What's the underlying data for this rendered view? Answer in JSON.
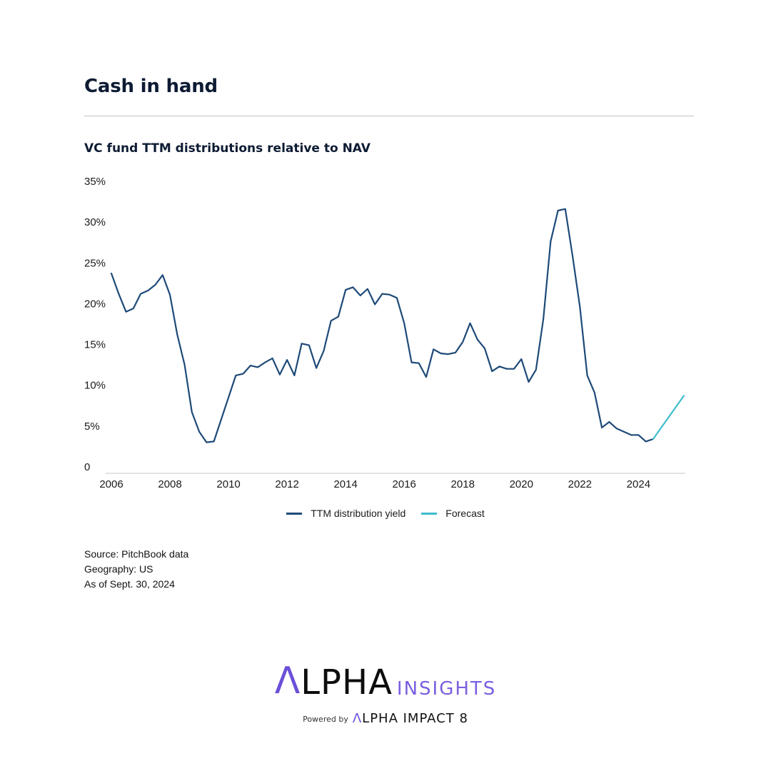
{
  "page": {
    "title": "Cash in hand",
    "subtitle": "VC fund TTM distributions relative to NAV"
  },
  "chart_data": {
    "type": "line",
    "title": "VC fund TTM distributions relative to NAV",
    "xlabel": "",
    "ylabel": "",
    "xlim": [
      2006,
      2025.6
    ],
    "ylim": [
      0,
      35
    ],
    "x_ticks": [
      "2006",
      "2008",
      "2010",
      "2012",
      "2014",
      "2016",
      "2018",
      "2020",
      "2022",
      "2024"
    ],
    "y_ticks": [
      "0",
      "5%",
      "10%",
      "15%",
      "20%",
      "25%",
      "30%",
      "35%"
    ],
    "grid": false,
    "legend_position": "bottom-center",
    "series": [
      {
        "name": "TTM distribution yield",
        "color": "#1e4a78",
        "points": [
          [
            2006.0,
            24.5
          ],
          [
            2006.25,
            22.0
          ],
          [
            2006.5,
            19.8
          ],
          [
            2006.75,
            20.2
          ],
          [
            2007.0,
            22.0
          ],
          [
            2007.25,
            22.4
          ],
          [
            2007.5,
            23.1
          ],
          [
            2007.75,
            24.3
          ],
          [
            2008.0,
            21.9
          ],
          [
            2008.25,
            17.0
          ],
          [
            2008.5,
            13.3
          ],
          [
            2008.75,
            7.5
          ],
          [
            2009.0,
            5.1
          ],
          [
            2009.25,
            3.8
          ],
          [
            2009.5,
            3.9
          ],
          [
            2009.75,
            6.6
          ],
          [
            2010.0,
            9.3
          ],
          [
            2010.25,
            12.0
          ],
          [
            2010.5,
            12.2
          ],
          [
            2010.75,
            13.2
          ],
          [
            2011.0,
            13.0
          ],
          [
            2011.25,
            13.6
          ],
          [
            2011.5,
            14.1
          ],
          [
            2011.75,
            12.1
          ],
          [
            2012.0,
            13.9
          ],
          [
            2012.25,
            12.0
          ],
          [
            2012.5,
            15.9
          ],
          [
            2012.75,
            15.7
          ],
          [
            2013.0,
            12.9
          ],
          [
            2013.25,
            15.0
          ],
          [
            2013.5,
            18.7
          ],
          [
            2013.75,
            19.2
          ],
          [
            2014.0,
            22.5
          ],
          [
            2014.25,
            22.8
          ],
          [
            2014.5,
            21.8
          ],
          [
            2014.75,
            22.6
          ],
          [
            2015.0,
            20.7
          ],
          [
            2015.25,
            22.0
          ],
          [
            2015.5,
            21.9
          ],
          [
            2015.75,
            21.5
          ],
          [
            2016.0,
            18.4
          ],
          [
            2016.25,
            13.6
          ],
          [
            2016.5,
            13.5
          ],
          [
            2016.75,
            11.8
          ],
          [
            2017.0,
            15.2
          ],
          [
            2017.25,
            14.7
          ],
          [
            2017.5,
            14.6
          ],
          [
            2017.75,
            14.8
          ],
          [
            2018.0,
            16.1
          ],
          [
            2018.25,
            18.4
          ],
          [
            2018.5,
            16.4
          ],
          [
            2018.75,
            15.3
          ],
          [
            2019.0,
            12.5
          ],
          [
            2019.25,
            13.1
          ],
          [
            2019.5,
            12.8
          ],
          [
            2019.75,
            12.8
          ],
          [
            2020.0,
            14.0
          ],
          [
            2020.25,
            11.2
          ],
          [
            2020.5,
            12.7
          ],
          [
            2020.75,
            18.9
          ],
          [
            2021.0,
            28.4
          ],
          [
            2021.25,
            32.2
          ],
          [
            2021.5,
            32.4
          ],
          [
            2021.75,
            26.6
          ],
          [
            2022.0,
            20.4
          ],
          [
            2022.25,
            12.0
          ],
          [
            2022.5,
            9.9
          ],
          [
            2022.75,
            5.6
          ],
          [
            2023.0,
            6.3
          ],
          [
            2023.25,
            5.5
          ],
          [
            2023.5,
            5.1
          ],
          [
            2023.75,
            4.7
          ],
          [
            2024.0,
            4.7
          ],
          [
            2024.25,
            3.9
          ],
          [
            2024.5,
            4.2
          ]
        ]
      },
      {
        "name": "Forecast",
        "color": "#3fbccd",
        "points": [
          [
            2024.5,
            4.2
          ],
          [
            2025.55,
            9.5
          ]
        ]
      }
    ]
  },
  "notes": {
    "source": "Source: PitchBook data",
    "geography": "Geography: US",
    "as_of": "As of Sept. 30, 2024"
  },
  "brand": {
    "logo_a": "Λ",
    "logo_main": "LPHA",
    "logo_sub": "INSIGHTS",
    "powered_by": "Powered by",
    "powered_a": "Λ",
    "powered_rest": "LPHA IMPACT 8",
    "accent_color": "#6b4fd8"
  }
}
